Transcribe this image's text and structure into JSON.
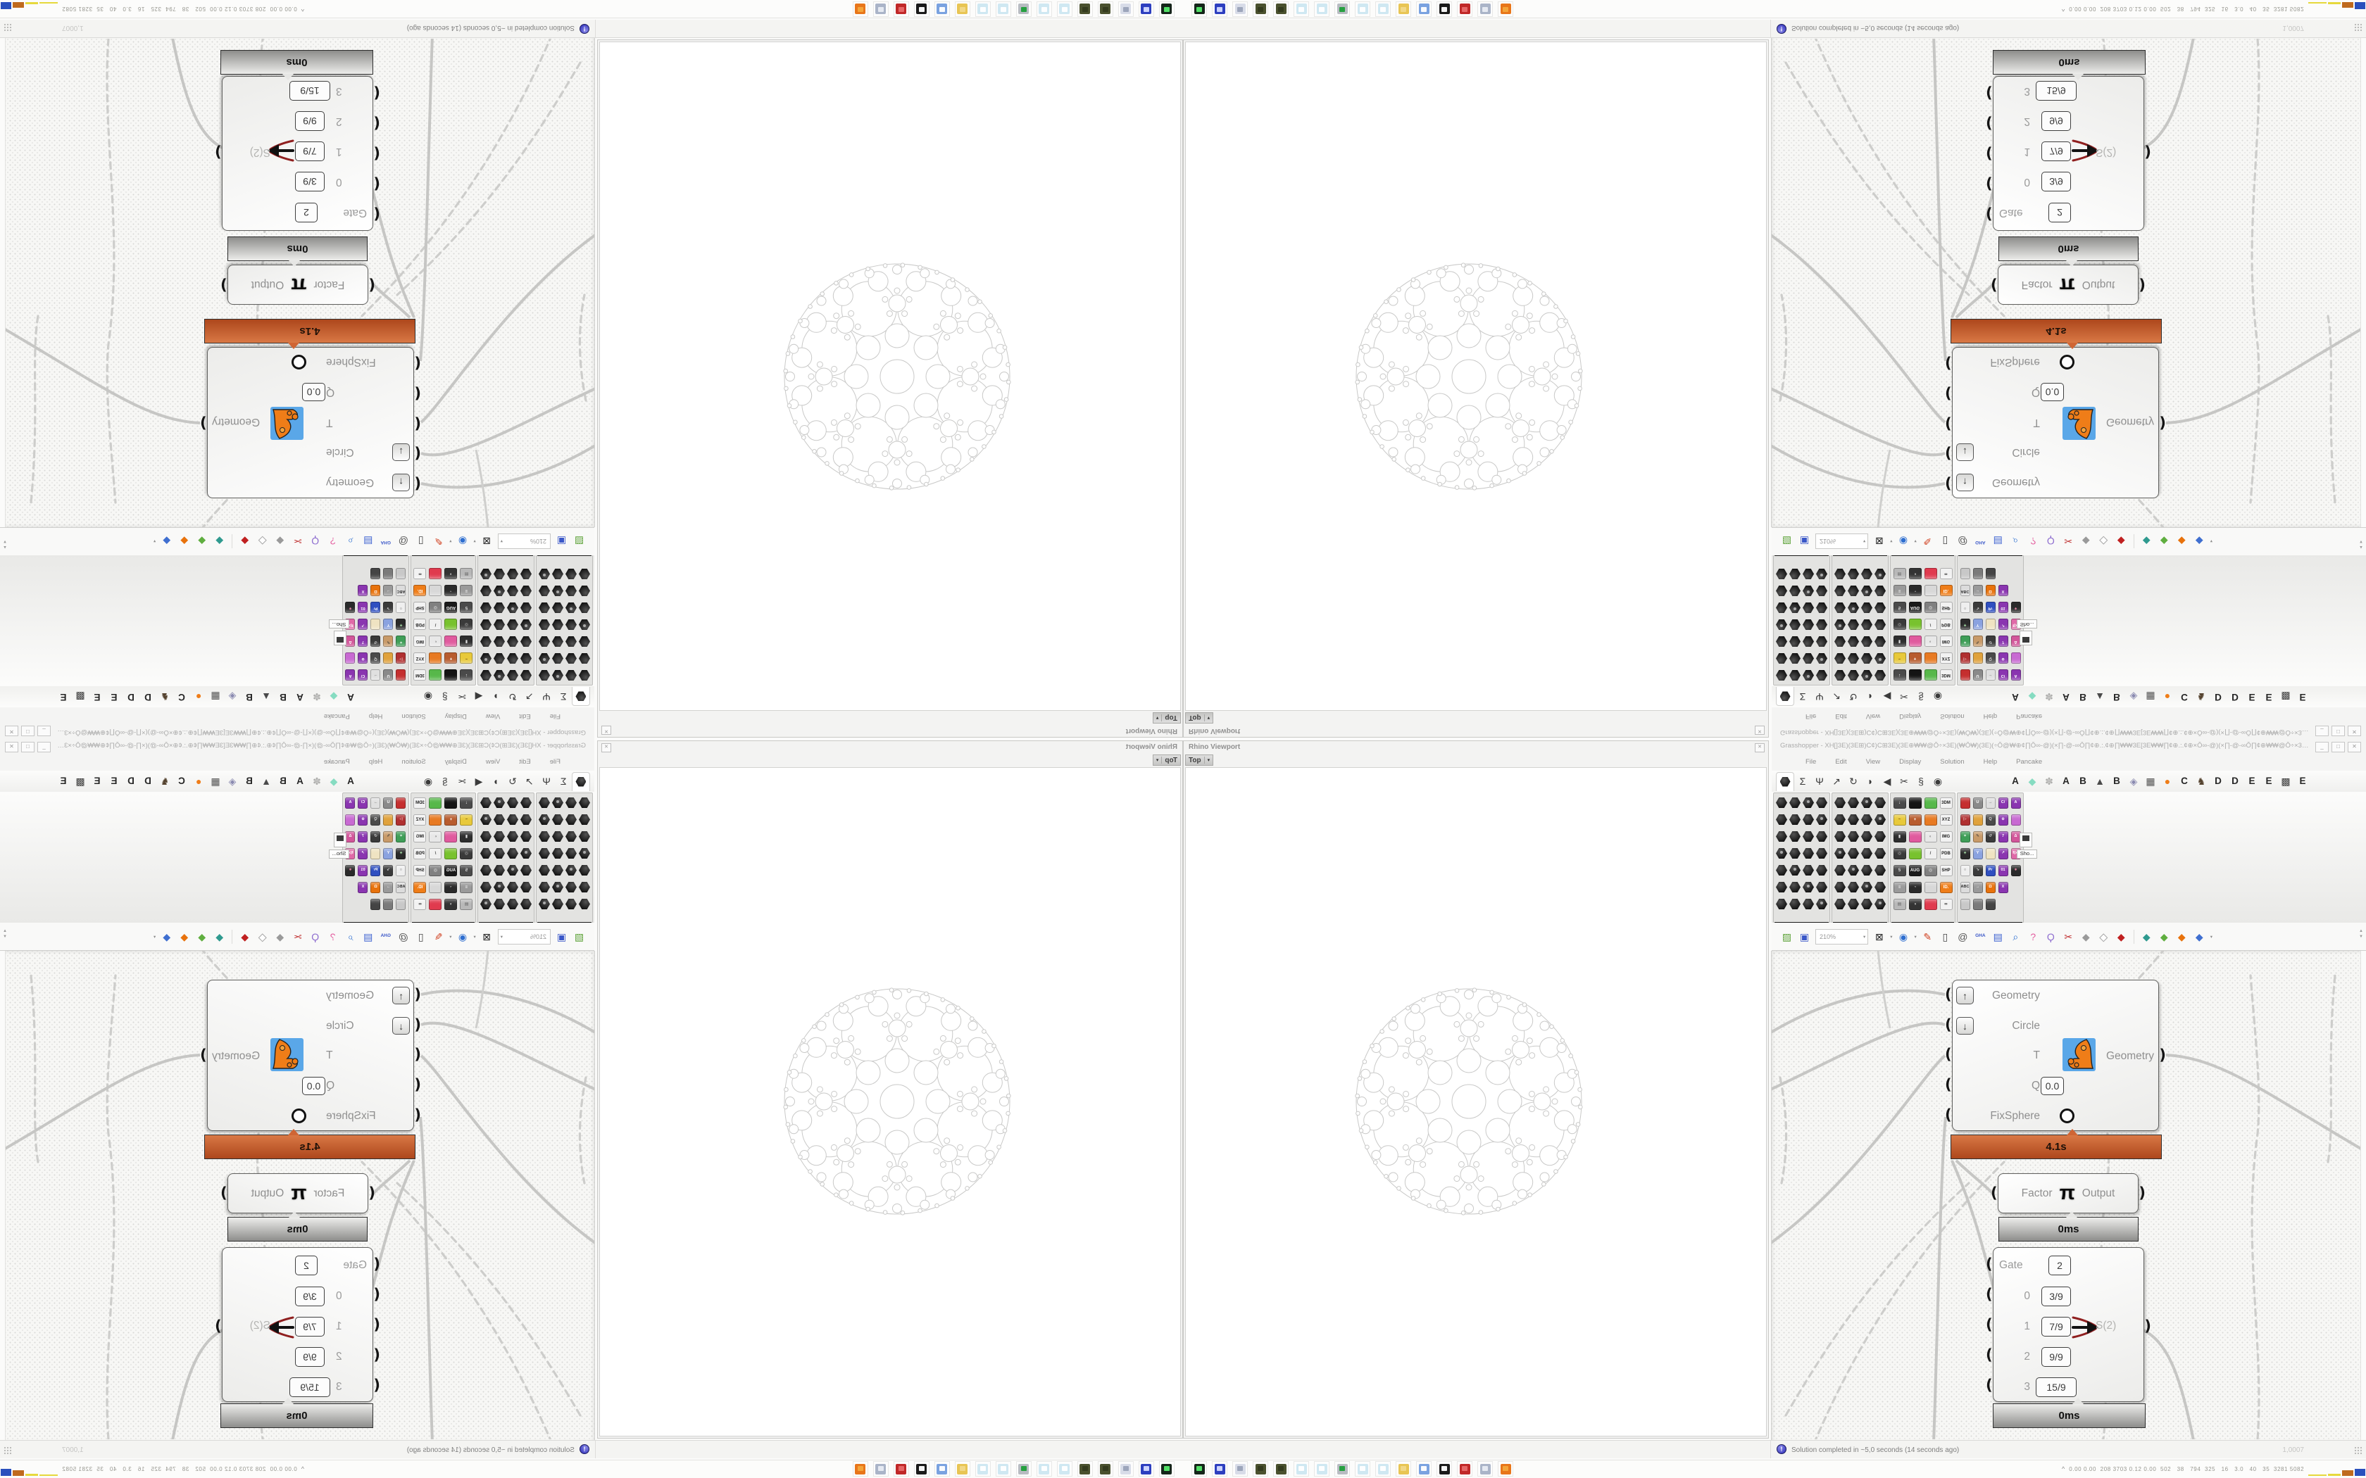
{
  "quadrants": [
    {
      "id": "top-left",
      "flip": "both"
    },
    {
      "id": "top-right",
      "flip": "vertical"
    },
    {
      "id": "bottom-left",
      "flip": "horizontal"
    },
    {
      "id": "bottom-right",
      "flip": "none"
    }
  ],
  "rhino_panel": {
    "title": "Rhino Viewport",
    "close_glyph": "✕",
    "viewport_tab": "Top",
    "tab_caret": "▾"
  },
  "gh_window": {
    "title": "Grasshopper - XH[]3E)(3E⊞)C¢)C⊞3E)(3E⊕₩₩@Ô÷×3E)(₩Ô₩)(3E)(÷Ô@₩⊕¢∏Ô∞-@)(×∏-@-∞Ô∏¢⊕.:.¢⊕∏₩₩3E[3E₩₩∏¢⊕.:.¢⊕×Ô∞-@)(×∏-@-∞Ô∏¢⊕₩₩@Ô÷×3E)(₩Ô₩)(3E...",
    "window_buttons": [
      {
        "name": "minimize",
        "glyph": "_"
      },
      {
        "name": "maximize",
        "glyph": "□"
      },
      {
        "name": "close",
        "glyph": "✕"
      }
    ],
    "menu": [
      "File",
      "Edit",
      "View",
      "Display",
      "Solution",
      "Help",
      "Pancake"
    ],
    "tabs": [
      {
        "kind": "hex",
        "name": "tab-params",
        "active": true
      },
      {
        "kind": "glyph",
        "name": "tab-maths-sigma-icon",
        "glyph": "Σ"
      },
      {
        "kind": "glyph",
        "name": "tab-sets-branch-icon",
        "glyph": "Ψ"
      },
      {
        "kind": "glyph",
        "name": "tab-vector-arrow-icon",
        "glyph": "↗"
      },
      {
        "kind": "glyph",
        "name": "tab-curve-icon",
        "glyph": "↻"
      },
      {
        "kind": "glyph",
        "name": "tab-surface-icon",
        "glyph": "◗"
      },
      {
        "kind": "glyph",
        "name": "tab-mesh-icon",
        "glyph": "◀"
      },
      {
        "kind": "glyph",
        "name": "tab-intersect-scissors-icon",
        "glyph": "✂"
      },
      {
        "kind": "glyph",
        "name": "tab-transform-icon",
        "glyph": "§"
      },
      {
        "kind": "glyph",
        "name": "tab-display-eye-icon",
        "glyph": "◉"
      },
      {
        "kind": "letter",
        "glyph": "A"
      },
      {
        "kind": "glyph",
        "name": "tab-plugin-gem-icon",
        "glyph": "◆",
        "color": "#86dcc1"
      },
      {
        "kind": "glyph",
        "name": "tab-plugin-flower-icon",
        "glyph": "✽",
        "color": "#b0b0ae"
      },
      {
        "kind": "letter",
        "glyph": "A"
      },
      {
        "kind": "letter",
        "glyph": "B"
      },
      {
        "kind": "glyph",
        "name": "tab-plugin-mountain-icon",
        "glyph": "▲",
        "color": "#4a4a4a"
      },
      {
        "kind": "letter",
        "glyph": "B"
      },
      {
        "kind": "glyph",
        "name": "tab-plugin-shield-icon",
        "glyph": "◈",
        "color": "#8a8ab0"
      },
      {
        "kind": "glyph",
        "name": "tab-plugin-grid-icon",
        "glyph": "▦",
        "color": "#4e4e4e"
      },
      {
        "kind": "glyph",
        "name": "tab-plugin-dot-icon",
        "glyph": "●",
        "color": "#ef7d18"
      },
      {
        "kind": "letter",
        "glyph": "C"
      },
      {
        "kind": "glyph",
        "name": "tab-plugin-rooster-icon",
        "glyph": "♞",
        "color": "#54422e"
      },
      {
        "kind": "letter",
        "glyph": "D"
      },
      {
        "kind": "letter",
        "glyph": "D"
      },
      {
        "kind": "letter",
        "glyph": "E"
      },
      {
        "kind": "letter",
        "glyph": "E"
      },
      {
        "kind": "glyph",
        "name": "tab-plugin-pixelgrid-icon",
        "glyph": "▩",
        "color": "#3a3a3a"
      },
      {
        "kind": "letter",
        "glyph": "E"
      }
    ],
    "panels": [
      {
        "label": "Geometry",
        "style": "hex",
        "cols": 4,
        "rows": 7
      },
      {
        "label": "Primitive",
        "style": "hex",
        "cols": 4,
        "rows": 7
      },
      {
        "label": "Input",
        "style": "tiles",
        "cols": 4,
        "rows": 7,
        "tiles": [
          {
            "c": "#4a4a4a",
            "t": "↓",
            "tc": "#fff"
          },
          {
            "c": "#141414"
          },
          {
            "c": "#57b84a"
          },
          {
            "c": "#f2f2f2",
            "t": "3DM",
            "tc": "#222"
          },
          {
            "c": "#e8c93a",
            "t": "~",
            "tc": "#7a5a10"
          },
          {
            "c": "#b85c2e",
            "t": "+",
            "tc": "#fff"
          },
          {
            "c": "#e87a22"
          },
          {
            "c": "#f2f2f2",
            "t": "XYZ",
            "tc": "#222"
          },
          {
            "c": "#2e2e2e",
            "t": "▮",
            "tc": "#ddd"
          },
          {
            "c": "#e05a9e"
          },
          {
            "c": "#e8e8e8",
            "t": "◐",
            "tc": "#888"
          },
          {
            "c": "#f2f2f2",
            "t": "IMG",
            "tc": "#222"
          },
          {
            "c": "#3a3a3a",
            "t": "◎",
            "tc": "#bbb"
          },
          {
            "c": "#78c22e"
          },
          {
            "c": "#f0f0f0",
            "t": "/",
            "tc": "#444"
          },
          {
            "c": "#f2f2f2",
            "t": "PDB",
            "tc": "#222"
          },
          {
            "c": "#4a4a4a",
            "t": "5",
            "tc": "#ddd"
          },
          {
            "c": "#1a1a1a",
            "t": "AUG",
            "tc": "#fff"
          },
          {
            "c": "#808080",
            "t": "◎",
            "tc": "#eee"
          },
          {
            "c": "#f2f2f2",
            "t": "SHP",
            "tc": "#222"
          },
          {
            "c": "#9a9a9a",
            "t": "≡",
            "tc": "#fff"
          },
          {
            "c": "#2a2a2a",
            "t": "◔",
            "tc": "#ccc"
          },
          {
            "c": "#d8d8d8"
          },
          {
            "c": "#ef7d18",
            "t": "ID.",
            "tc": "#fff"
          },
          {
            "c": "#b8b8b8",
            "t": "▤",
            "tc": "#666"
          },
          {
            "c": "#333333",
            "t": "◑",
            "tc": "#ddd"
          },
          {
            "c": "#e03a4e"
          },
          {
            "c": "#f2f2f2",
            "t": "∞",
            "tc": "#222"
          }
        ]
      },
      {
        "label": "Util",
        "style": "tiles",
        "cols": 5,
        "rows": 7,
        "tiles": [
          {
            "c": "#c52f2f"
          },
          {
            "c": "#8a8a8a",
            "t": "U",
            "tc": "#fff"
          },
          {
            "c": "#e0e0e0",
            "t": "→",
            "tc": "#666"
          },
          {
            "c": "#8a35b0",
            "t": "C/",
            "tc": "#fff"
          },
          {
            "c": "#8a35b0",
            "t": "A",
            "tc": "#fff"
          },
          {
            "c": "#b03030",
            "t": "▷",
            "tc": "#fff"
          },
          {
            "c": "#e0a23c"
          },
          {
            "c": "#4a4a4a",
            "t": "Q",
            "tc": "#ddd"
          },
          {
            "c": "#8a35b0",
            "t": "⊕",
            "tc": "#fff"
          },
          {
            "c": "#c86ad2"
          },
          {
            "c": "#3f9e57",
            "t": "✶",
            "tc": "#fff"
          },
          {
            "c": "#c89a68",
            "t": "✎",
            "tc": "#333"
          },
          {
            "c": "#3a3a3a",
            "t": "↺",
            "tc": "#ddd"
          },
          {
            "c": "#8a35b0",
            "t": "7",
            "tc": "#fff"
          },
          {
            "c": "#d2569a",
            "t": "Δ",
            "tc": "#fff"
          },
          {
            "c": "#2a2a2a",
            "t": "♣",
            "tc": "#9c9"
          },
          {
            "c": "#8aa2e0",
            "t": "Y",
            "tc": "#fff"
          },
          {
            "c": "#efe3c2"
          },
          {
            "c": "#8a35b0",
            "t": "↗",
            "tc": "#fff"
          },
          {
            "c": "#e06aa8",
            "t": "f(x)",
            "tc": "#fff"
          },
          {
            "c": "#efefef",
            "t": "○",
            "tc": "#555"
          },
          {
            "c": "#3a3a3a",
            "t": "↘",
            "tc": "#ddd"
          },
          {
            "c": "#2f4fc0",
            "t": "Pr",
            "tc": "#fff"
          },
          {
            "c": "#8a35b0",
            "t": "01",
            "tc": "#fff"
          },
          {
            "c": "#2a2a2a",
            "t": "∗",
            "tc": "#e8a"
          },
          {
            "c": "#dcdcdc",
            "t": "ABC",
            "tc": "#333"
          },
          {
            "c": "#9a9a9a",
            "t": "→",
            "tc": "#fff"
          },
          {
            "c": "#e8720c",
            "t": "Ω",
            "tc": "#fff"
          },
          {
            "c": "#8a35b0",
            "t": "X",
            "tc": "#fff"
          },
          null,
          {
            "c": "#c8c8c8"
          },
          {
            "c": "#7a7a7a"
          },
          {
            "c": "#444444"
          },
          null,
          null
        ]
      }
    ],
    "more_panel_label": "Sho...",
    "toolbar": {
      "zoom_value": "210%",
      "items": [
        {
          "t": "glyph",
          "name": "open-file-icon",
          "glyph": "▨",
          "c": "#5ea33a"
        },
        {
          "t": "glyph",
          "name": "save-floppy-icon",
          "glyph": "▣",
          "c": "#3a57c8"
        },
        {
          "t": "input"
        },
        {
          "t": "glyph",
          "name": "zoom-extents-icon",
          "glyph": "⊠",
          "c": "#222222",
          "caret": true
        },
        {
          "t": "glyph",
          "name": "preview-eye-icon",
          "glyph": "◉",
          "c": "#2f6fd0",
          "caret": true
        },
        {
          "t": "glyph",
          "name": "sketch-pen-icon",
          "glyph": "✎",
          "c": "#d04020"
        },
        {
          "t": "glyph",
          "name": "panel-door-icon",
          "glyph": "▯",
          "c": "#444444"
        },
        {
          "t": "glyph",
          "name": "at-document-icon",
          "glyph": "@",
          "c": "#555555"
        },
        {
          "t": "glyph",
          "name": "gha-assembly-icon",
          "glyph": "GHA",
          "c": "#3a57c8",
          "cls": "tb-gha"
        },
        {
          "t": "glyph",
          "name": "document-arrow-icon",
          "glyph": "▤",
          "c": "#3a5fd0"
        },
        {
          "t": "glyph",
          "name": "finder-magnifier-icon",
          "glyph": "⌕",
          "c": "#2f6fd0"
        },
        {
          "t": "glyph",
          "name": "help-box-icon",
          "glyph": "?",
          "c": "#e45fa0"
        },
        {
          "t": "glyph",
          "name": "lightbulb-icon",
          "glyph": "Ϙ",
          "c": "#8f6fd0"
        },
        {
          "t": "glyph",
          "name": "wire-scissors-icon",
          "glyph": "✂",
          "c": "#c03030"
        },
        {
          "t": "glyph",
          "name": "gem-gray-icon",
          "glyph": "◆",
          "c": "#9a9a9a"
        },
        {
          "t": "glyph",
          "name": "gem-white-icon",
          "glyph": "◆",
          "c": "#ffffff",
          "cls": "tb-gem-white"
        },
        {
          "t": "glyph",
          "name": "gem-red-icon",
          "glyph": "◆",
          "c": "#c02020"
        },
        {
          "t": "sep"
        },
        {
          "t": "glyph",
          "name": "gem-teal-icon",
          "glyph": "◆",
          "c": "#2f9a8f"
        },
        {
          "t": "glyph",
          "name": "gem-green-icon",
          "glyph": "◆",
          "c": "#5fae3f"
        },
        {
          "t": "glyph",
          "name": "gem-orange-icon",
          "glyph": "◆",
          "c": "#e8720c"
        },
        {
          "t": "glyph",
          "name": "gem-blue-icon",
          "glyph": "◆",
          "c": "#3f6fd0",
          "caret": true
        }
      ],
      "scroll_up": "▲",
      "scroll_down": "▼"
    },
    "status_icon": "!",
    "status_text": "Solution completed in ~5,0 seconds (14 seconds ago)",
    "status_right": "1,0007"
  },
  "canvas": {
    "main_node": {
      "inputs": [
        {
          "label": "Geometry",
          "button": "up"
        },
        {
          "label": "Circle",
          "button": "down"
        },
        {
          "label": "T"
        },
        {
          "label": "Q",
          "value": "0.0"
        },
        {
          "label": "FixSphere",
          "toggle": true
        }
      ],
      "output_label": "Geometry",
      "profiler": "4.1s"
    },
    "pi_node": {
      "input_label": "Factor",
      "symbol": "π",
      "output_label": "Output",
      "profiler": "0ms"
    },
    "gate_node": {
      "header_label": "Gate",
      "header_value": "2",
      "rows": [
        {
          "index": "0",
          "value": "3/9"
        },
        {
          "index": "1",
          "value": "7/9",
          "selected": true
        },
        {
          "index": "2",
          "value": "9/9"
        },
        {
          "index": "3",
          "value": "15/9"
        }
      ],
      "selected_output": "S(2)",
      "profiler": "0ms"
    }
  },
  "taskbar": {
    "icons": [
      {
        "name": "terminal-icon",
        "c": "#15251a",
        "i": "#54e86a"
      },
      {
        "name": "floppy-disk-icon",
        "c": "#2d3fbf",
        "i": "#cfd6ff",
        "t": "64"
      },
      {
        "name": "document-scroll-icon",
        "c": "#d8dce8",
        "i": "#9aa2b8"
      },
      {
        "name": "wreath-icon",
        "c": "#4a512e",
        "i": "#333a1e"
      },
      {
        "name": "wreath-icon-2",
        "c": "#4a512e",
        "i": "#333a1e"
      },
      {
        "name": "notepad-icon",
        "c": "#cfe8f2",
        "i": "#ffffff"
      },
      {
        "name": "notepad-icon-2",
        "c": "#cfe8f2",
        "i": "#ffffff"
      },
      {
        "name": "monitor-icon",
        "c": "#b8bcc2",
        "i": "#1e9e3a"
      },
      {
        "name": "notepad-icon-3",
        "c": "#cfe8f2",
        "i": "#ffffff"
      },
      {
        "name": "notepad-icon-4",
        "c": "#cfe8f2",
        "i": "#ffffff"
      },
      {
        "name": "folder-icon",
        "c": "#e8c554",
        "i": "#f2d98a"
      },
      {
        "name": "display-settings-icon",
        "c": "#7aa2e0",
        "i": "#ffffff"
      },
      {
        "name": "cat-icon",
        "c": "#1a1a1a",
        "i": "#ffffff"
      },
      {
        "name": "red-badge-icon",
        "c": "#c02828",
        "i": "#e86a6a"
      },
      {
        "name": "calculator-icon",
        "c": "#aab4c8",
        "i": "#e8ecf4"
      },
      {
        "name": "firefox-icon",
        "c": "#e8761a",
        "i": "#f4a83c"
      }
    ],
    "monitor": {
      "caret": "^",
      "values": "0.00 0.00  208 3703 0.12 0.00  502   38   794  325   16   3.0   40   35  3281 5082",
      "bars": [
        {
          "c": "#e6d93c",
          "w": 26,
          "h": 2
        },
        {
          "c": "#e6d93c",
          "w": 18,
          "h": 3
        },
        {
          "c": "#bf6a1e",
          "w": 16,
          "h": 8
        },
        {
          "c": "#2a50bd",
          "w": 15,
          "h": 10
        },
        {
          "c": "#9a5a14",
          "w": 15,
          "h": 10
        },
        {
          "c": "#63c94e",
          "w": 16,
          "h": 2
        },
        {
          "c": "#a82222",
          "w": 14,
          "h": 5
        }
      ]
    }
  }
}
